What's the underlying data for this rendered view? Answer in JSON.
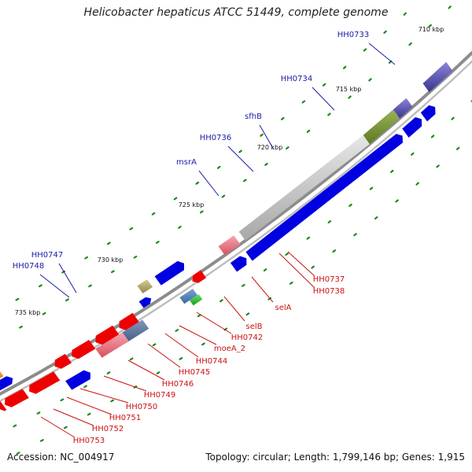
{
  "title": "Helicobacter hepaticus ATCC 51449, complete genome",
  "footer": {
    "accession": "Accession: NC_004917",
    "summary": "Topology: circular; Length: 1,799,146 bp; Genes: 1,915"
  },
  "scale_labels": [
    "710 kbp",
    "715 kbp",
    "720 kbp",
    "725 kbp",
    "730 kbp",
    "735 kbp"
  ],
  "forward_labels": [
    "HH0733",
    "HH0734",
    "sfhB",
    "HH0736",
    "msrA",
    "HH0747",
    "HH0748"
  ],
  "reverse_labels": [
    "HH0737",
    "HH0738",
    "selA",
    "selB",
    "HH0742",
    "moeA_2",
    "HH0744",
    "HH0745",
    "HH0746",
    "HH0749",
    "HH0750",
    "HH0751",
    "HH0752",
    "HH0753"
  ],
  "colors": {
    "forward_gene": "#0000e0",
    "reverse_gene": "#ee0000",
    "forward_label": "#1a1aa6",
    "reverse_label": "#cc1010",
    "backbone": "#8c8c8c",
    "tick": "#1a8a1a"
  }
}
